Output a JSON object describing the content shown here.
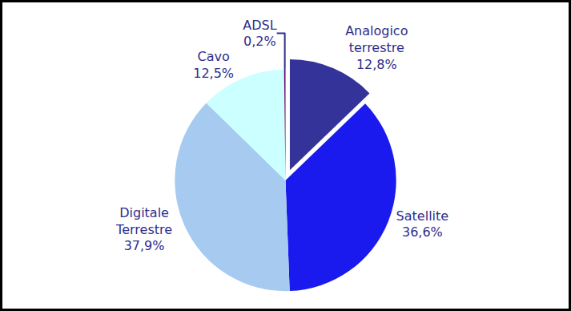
{
  "chart_data": {
    "type": "pie",
    "categories": [
      "Analogico terrestre",
      "Satellite",
      "Digitale Terrestre",
      "Cavo",
      "ADSL"
    ],
    "values": [
      12.8,
      36.6,
      37.9,
      12.5,
      0.2
    ],
    "value_labels": [
      "12,8%",
      "36,6%",
      "37,9%",
      "12,5%",
      "0,2%"
    ],
    "colors": [
      "#333399",
      "#1a1aee",
      "#a6caf0",
      "#ccffff",
      "#660066"
    ],
    "data_labels": true
  }
}
